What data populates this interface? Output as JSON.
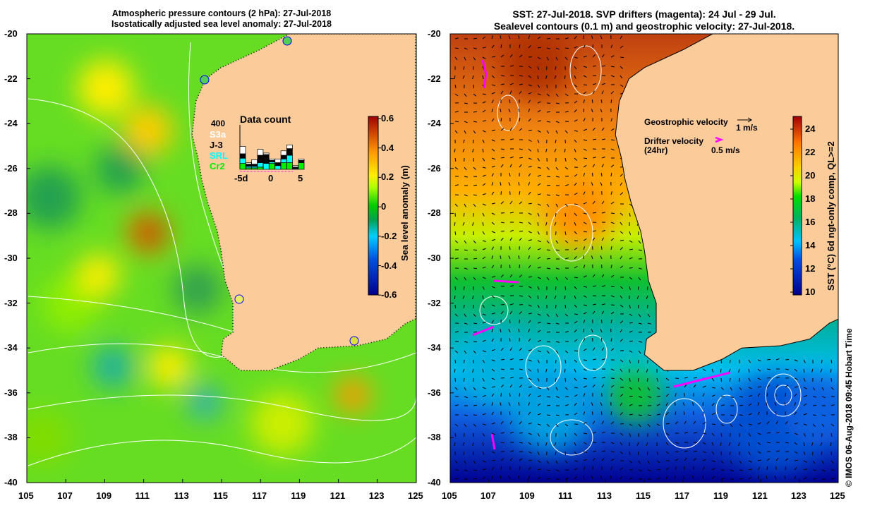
{
  "left": {
    "title_lines": [
      "Atmospheric pressure contours (2 hPa): 27-Jul-2018",
      "Isostatically adjusted sea level anomaly: 27-Jul-2018"
    ],
    "colorbar_label": "Sea level anomaly (m)",
    "colorbar_ticks": [
      "0.6",
      "0.4",
      "0.2",
      "0",
      "-0.2",
      "-0.4",
      "-0.6"
    ],
    "data_count": {
      "title": "Data count",
      "max_label": "400",
      "legend": [
        {
          "name": "S3a",
          "color": "#ffffff"
        },
        {
          "name": "J-3",
          "color": "#000000"
        },
        {
          "name": "SRL",
          "color": "#00ffff"
        },
        {
          "name": "Cr2",
          "color": "#00ee00"
        }
      ],
      "x_ticks": [
        "-5d",
        "0",
        "5"
      ]
    }
  },
  "right": {
    "title_lines": [
      "SST: 27-Jul-2018. SVP drifters (magenta): 24 Jul - 29 Jul.",
      "Sealevel contours (0.1 m) and geostrophic velocity: 27-Jul-2018."
    ],
    "geostrophic_label": "Geostrophic velocity",
    "geostrophic_scale": "1 m/s",
    "drifter_label_1": "Drifter velocity",
    "drifter_label_2": "(24hr)",
    "drifter_scale": "0.5 m/s",
    "colorbar_label": "SST (°C) 6d ngt-only comp, QL>=2",
    "colorbar_ticks": [
      "24",
      "22",
      "20",
      "18",
      "16",
      "14",
      "12",
      "10"
    ]
  },
  "axes": {
    "lat_ticks": [
      "-20",
      "-22",
      "-24",
      "-26",
      "-28",
      "-30",
      "-32",
      "-34",
      "-36",
      "-38",
      "-40"
    ],
    "lon_ticks": [
      "105",
      "107",
      "109",
      "111",
      "113",
      "115",
      "117",
      "119",
      "121",
      "123",
      "125"
    ]
  },
  "credit": "© IMOS 06-Aug-2018 09:45 Hobart Time"
}
